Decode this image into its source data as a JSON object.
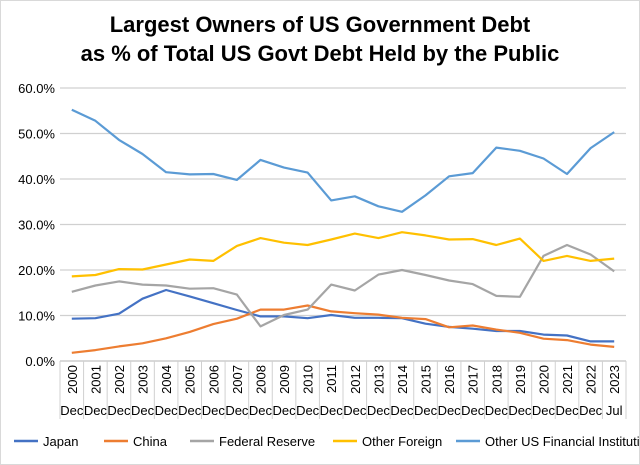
{
  "chart_data": {
    "type": "line",
    "title_lines": [
      "Largest Owners of US Government Debt",
      "as % of Total US Govt Debt Held by the Public"
    ],
    "xlabel": "",
    "ylabel": "",
    "categories": [
      "2000",
      "2001",
      "2002",
      "2003",
      "2004",
      "2005",
      "2006",
      "2007",
      "2008",
      "2009",
      "2010",
      "2011",
      "2012",
      "2013",
      "2014",
      "2015",
      "2016",
      "2017",
      "2018",
      "2019",
      "2020",
      "2021",
      "2022",
      "2023"
    ],
    "category_sublabels": [
      "Dec",
      "Dec",
      "Dec",
      "Dec",
      "Dec",
      "Dec",
      "Dec",
      "Dec",
      "Dec",
      "Dec",
      "Dec",
      "Dec",
      "Dec",
      "Dec",
      "Dec",
      "Dec",
      "Dec",
      "Dec",
      "Dec",
      "Dec",
      "Dec",
      "Dec",
      "Dec",
      "Jul"
    ],
    "ylim": [
      0,
      60
    ],
    "yticks": [
      "0.0%",
      "10.0%",
      "20.0%",
      "30.0%",
      "40.0%",
      "50.0%",
      "60.0%"
    ],
    "grid": "horizontal",
    "legend": "bottom",
    "series": [
      {
        "name": "Japan",
        "color": "#4472c4",
        "values": [
          9.3,
          9.4,
          10.4,
          13.7,
          15.6,
          14.2,
          12.7,
          11.2,
          9.8,
          9.8,
          9.4,
          10.1,
          9.5,
          9.5,
          9.4,
          8.2,
          7.5,
          7.1,
          6.6,
          6.6,
          5.8,
          5.6,
          4.3,
          4.3
        ]
      },
      {
        "name": "China",
        "color": "#ed7d31",
        "values": [
          1.8,
          2.4,
          3.2,
          3.9,
          5.0,
          6.4,
          8.1,
          9.3,
          11.3,
          11.3,
          12.2,
          10.9,
          10.5,
          10.2,
          9.5,
          9.2,
          7.4,
          7.8,
          6.9,
          6.2,
          4.9,
          4.6,
          3.6,
          3.1
        ]
      },
      {
        "name": "Federal Reserve",
        "color": "#a5a5a5",
        "values": [
          15.2,
          16.6,
          17.5,
          16.8,
          16.6,
          15.9,
          16.0,
          14.6,
          7.6,
          10.1,
          11.3,
          16.8,
          15.5,
          19.0,
          20.0,
          18.9,
          17.7,
          16.9,
          14.3,
          14.1,
          23.1,
          25.5,
          23.4,
          19.7
        ]
      },
      {
        "name": "Other Foreign",
        "color": "#ffc000",
        "values": [
          18.6,
          18.9,
          20.2,
          20.1,
          21.2,
          22.3,
          22.0,
          25.3,
          27.0,
          26.0,
          25.5,
          26.7,
          28.0,
          27.0,
          28.3,
          27.6,
          26.7,
          26.8,
          25.5,
          26.9,
          22.0,
          23.1,
          22.0,
          22.5
        ]
      },
      {
        "name": "Other US Financial Institutions",
        "color": "#5b9bd5",
        "values": [
          55.2,
          52.8,
          48.6,
          45.5,
          41.5,
          41.0,
          41.1,
          39.8,
          44.2,
          42.5,
          41.4,
          35.3,
          36.2,
          34.0,
          32.8,
          36.4,
          40.6,
          41.3,
          46.9,
          46.2,
          44.5,
          41.1,
          46.8,
          50.3
        ]
      }
    ]
  }
}
